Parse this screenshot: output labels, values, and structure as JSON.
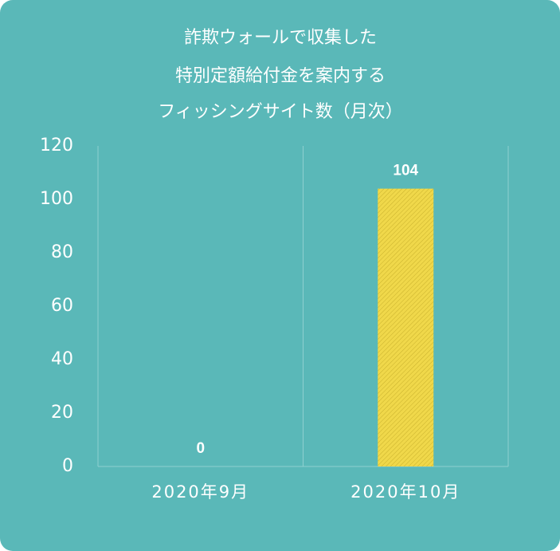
{
  "chart_data": {
    "type": "bar",
    "title": [
      "詐欺ウォールで収集した",
      "特別定額給付金を案内する",
      "フィッシングサイト数（月次）"
    ],
    "categories": [
      "2020年9月",
      "2020年10月"
    ],
    "values": [
      0,
      104
    ],
    "color": "#f0d84a",
    "ylim": [
      0,
      120
    ],
    "yticks": [
      0,
      20,
      40,
      60,
      80,
      100,
      120
    ]
  }
}
